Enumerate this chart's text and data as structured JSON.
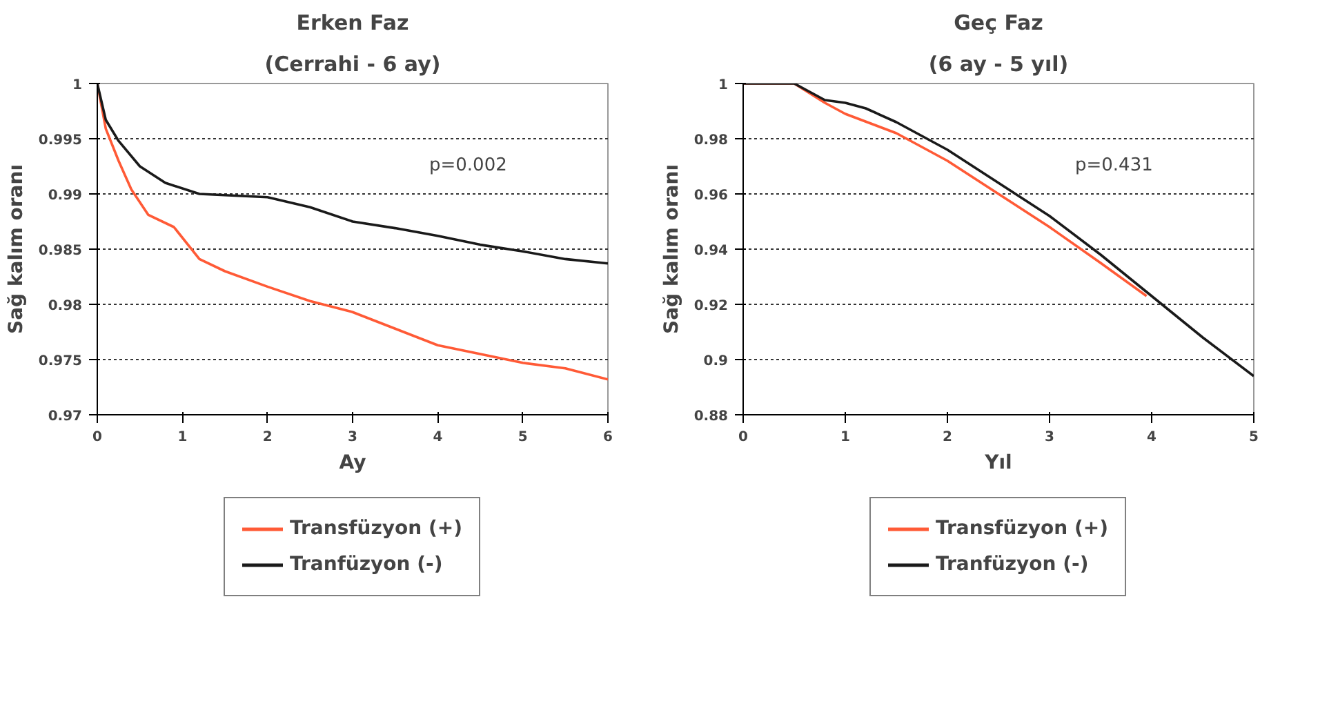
{
  "chart_data": [
    {
      "type": "line",
      "title": "Erken Faz",
      "subtitle": "(Cerrahi - 6 ay)",
      "xlabel": "Ay",
      "ylabel": "Sağ kalım oranı",
      "xlim": [
        0,
        6
      ],
      "xticks": [
        0,
        1,
        2,
        3,
        4,
        5,
        6
      ],
      "ylim": [
        0.97,
        1
      ],
      "yticks": [
        0.97,
        0.975,
        0.98,
        0.985,
        0.99,
        0.995,
        1
      ],
      "grid": "y",
      "legend": "bottom",
      "line_style": "solid",
      "annotations": [
        "p=0.002"
      ],
      "series": [
        {
          "name": "Transfüzyon (+)",
          "color": "#ff5a36",
          "x": [
            0,
            0.1,
            0.25,
            0.4,
            0.6,
            0.9,
            1.2,
            1.5,
            2,
            2.5,
            3,
            3.5,
            4,
            4.5,
            5,
            5.5,
            6
          ],
          "values": [
            1,
            0.9959,
            0.993,
            0.9904,
            0.9881,
            0.987,
            0.9841,
            0.983,
            0.9816,
            0.9803,
            0.9793,
            0.9778,
            0.9763,
            0.9755,
            0.9747,
            0.9742,
            0.9732
          ]
        },
        {
          "name": "Tranfüzyon (-)",
          "color": "#1a1a1a",
          "x": [
            0,
            0.1,
            0.25,
            0.5,
            0.8,
            1.2,
            2,
            2.5,
            3,
            3.5,
            4,
            4.5,
            5,
            5.5,
            6
          ],
          "values": [
            1,
            0.9967,
            0.9948,
            0.9925,
            0.991,
            0.99,
            0.9897,
            0.9888,
            0.9875,
            0.9869,
            0.9862,
            0.9854,
            0.9848,
            0.9841,
            0.9837
          ]
        }
      ]
    },
    {
      "type": "line",
      "title": "Geç Faz",
      "subtitle": "(6 ay - 5 yıl)",
      "xlabel": "Yıl",
      "ylabel": "Sağ kalım oranı",
      "xlim": [
        0,
        5
      ],
      "xticks": [
        0,
        1,
        2,
        3,
        4,
        5
      ],
      "ylim": [
        0.88,
        1
      ],
      "yticks": [
        0.88,
        0.9,
        0.92,
        0.94,
        0.96,
        0.98,
        1
      ],
      "grid": "y",
      "legend": "bottom",
      "line_style": "solid",
      "annotations": [
        "p=0.431"
      ],
      "series": [
        {
          "name": "Transfüzyon (+)",
          "color": "#ff5a36",
          "x": [
            0,
            0.5,
            0.8,
            1,
            1.5,
            2,
            2.5,
            3,
            3.5,
            3.95
          ],
          "values": [
            1,
            1,
            0.993,
            0.989,
            0.982,
            0.972,
            0.96,
            0.948,
            0.935,
            0.923
          ]
        },
        {
          "name": "Tranfüzyon (-)",
          "color": "#1a1a1a",
          "x": [
            0,
            0.5,
            0.8,
            1,
            1.2,
            1.5,
            2,
            2.5,
            3,
            3.5,
            4,
            4.5,
            5
          ],
          "values": [
            1,
            1,
            0.994,
            0.993,
            0.991,
            0.986,
            0.976,
            0.964,
            0.952,
            0.938,
            0.923,
            0.908,
            0.894
          ]
        }
      ]
    }
  ]
}
